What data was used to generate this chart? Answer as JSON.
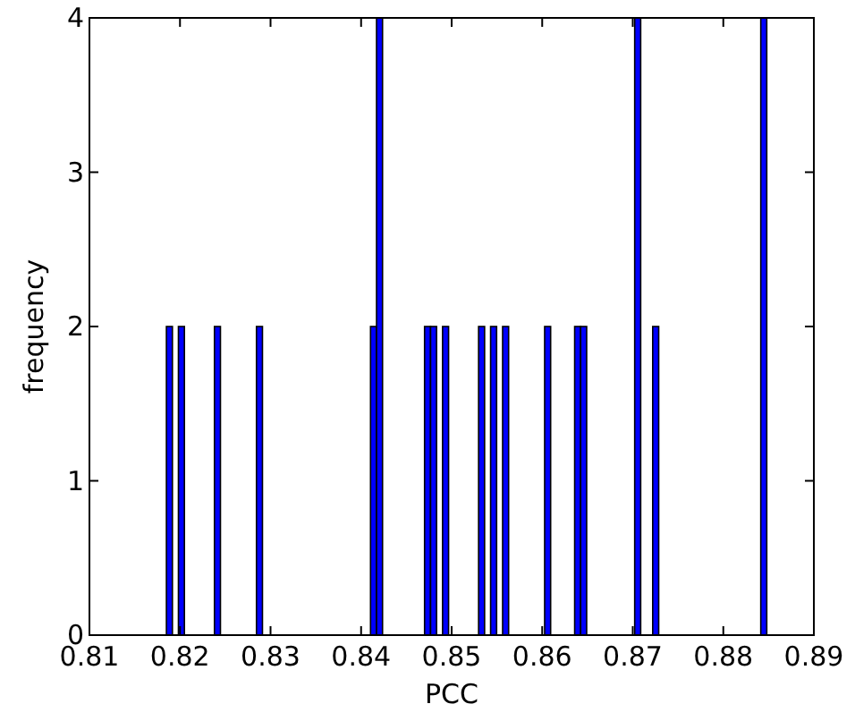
{
  "chart_data": {
    "type": "histogram",
    "xlabel": "PCC",
    "ylabel": "frequency",
    "color": "#0000ff",
    "bins": [
      0.8185,
      0.819163,
      0.819826,
      0.820489,
      0.821152,
      0.821815,
      0.822478,
      0.823141,
      0.823804,
      0.824467,
      0.82513,
      0.825793,
      0.826456,
      0.827119,
      0.827782,
      0.828445,
      0.829108,
      0.829771,
      0.830434,
      0.831097,
      0.83176,
      0.832423,
      0.833086,
      0.833749,
      0.834412,
      0.835075,
      0.835738,
      0.836401,
      0.837064,
      0.837727,
      0.83839,
      0.839053,
      0.839716,
      0.840379,
      0.841042,
      0.841705,
      0.842368,
      0.843031,
      0.843694,
      0.844357,
      0.84502,
      0.845683,
      0.846346,
      0.847009,
      0.847672,
      0.848335,
      0.848998,
      0.849661,
      0.850324,
      0.850987,
      0.85165,
      0.852313,
      0.852976,
      0.853639,
      0.854302,
      0.854965,
      0.855628,
      0.856291,
      0.856954,
      0.857617,
      0.85828,
      0.858943,
      0.859606,
      0.860269,
      0.860932,
      0.861595,
      0.862258,
      0.862921,
      0.863584,
      0.864247,
      0.86491,
      0.865573,
      0.866236,
      0.866899,
      0.867562,
      0.868225,
      0.868888,
      0.869551,
      0.870214,
      0.870877,
      0.87154,
      0.872203,
      0.872866,
      0.873529,
      0.874192,
      0.874855,
      0.875518,
      0.876181,
      0.876844,
      0.877507,
      0.87817,
      0.878833,
      0.879496,
      0.880159,
      0.880822,
      0.881485,
      0.882148,
      0.882811,
      0.883474,
      0.884137,
      0.8848
    ],
    "values": [
      2,
      0,
      2,
      0,
      0,
      0,
      0,
      0,
      2,
      0,
      0,
      0,
      0,
      0,
      0,
      2,
      0,
      0,
      0,
      0,
      0,
      0,
      0,
      0,
      0,
      0,
      0,
      0,
      0,
      0,
      0,
      0,
      0,
      0,
      2,
      4,
      0,
      0,
      0,
      0,
      0,
      0,
      0,
      2,
      2,
      0,
      2,
      0,
      0,
      0,
      0,
      0,
      2,
      0,
      2,
      0,
      2,
      0,
      0,
      0,
      0,
      0,
      0,
      2,
      0,
      0,
      0,
      0,
      2,
      2,
      0,
      0,
      0,
      0,
      0,
      0,
      0,
      0,
      4,
      0,
      0,
      2,
      0,
      0,
      0,
      0,
      0,
      0,
      0,
      0,
      0,
      0,
      0,
      0,
      0,
      0,
      0,
      0,
      0,
      4
    ],
    "xlim": [
      0.81,
      0.89
    ],
    "xticks": [
      0.81,
      0.82,
      0.83,
      0.84,
      0.85,
      0.86,
      0.87,
      0.88,
      0.89
    ],
    "ylim": [
      0,
      4
    ],
    "yticks": [
      0,
      1,
      2,
      3,
      4
    ],
    "grid": false
  }
}
